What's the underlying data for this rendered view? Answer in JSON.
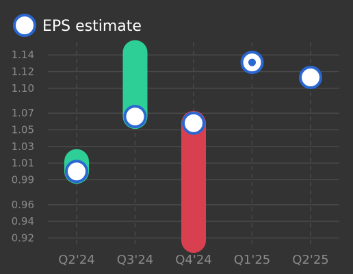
{
  "chart_data": {
    "type": "scatter",
    "legend": {
      "position": "top-left",
      "label": "EPS estimate"
    },
    "categories": [
      "Q2'24",
      "Q3'24",
      "Q4'24",
      "Q1'25",
      "Q2'25"
    ],
    "y_ticks": [
      "0.92",
      "0.94",
      "0.96",
      "0.99",
      "1.01",
      "1.03",
      "1.05",
      "1.07",
      "1.10",
      "1.12",
      "1.14"
    ],
    "ylim": [
      0.908,
      1.155
    ],
    "grid": true,
    "points": [
      {
        "category": "Q2'24",
        "estimate": 1.0,
        "actual": 1.012,
        "beat": true
      },
      {
        "category": "Q3'24",
        "estimate": 1.066,
        "actual": 1.143,
        "beat": true
      },
      {
        "category": "Q4'24",
        "estimate": 1.058,
        "actual": 0.917,
        "beat": false
      },
      {
        "category": "Q1'25",
        "estimate": 1.131,
        "actual": null,
        "beat": null
      },
      {
        "category": "Q2'25",
        "estimate": 1.113,
        "actual": null,
        "beat": null
      }
    ],
    "colors": {
      "beat": "#2ecf97",
      "miss": "#d9404f",
      "estimate_border": "#2b67d1",
      "estimate_fill": "#ffffff",
      "grid": "#4a4a4a",
      "tick_text": "#8a8a8a"
    }
  }
}
